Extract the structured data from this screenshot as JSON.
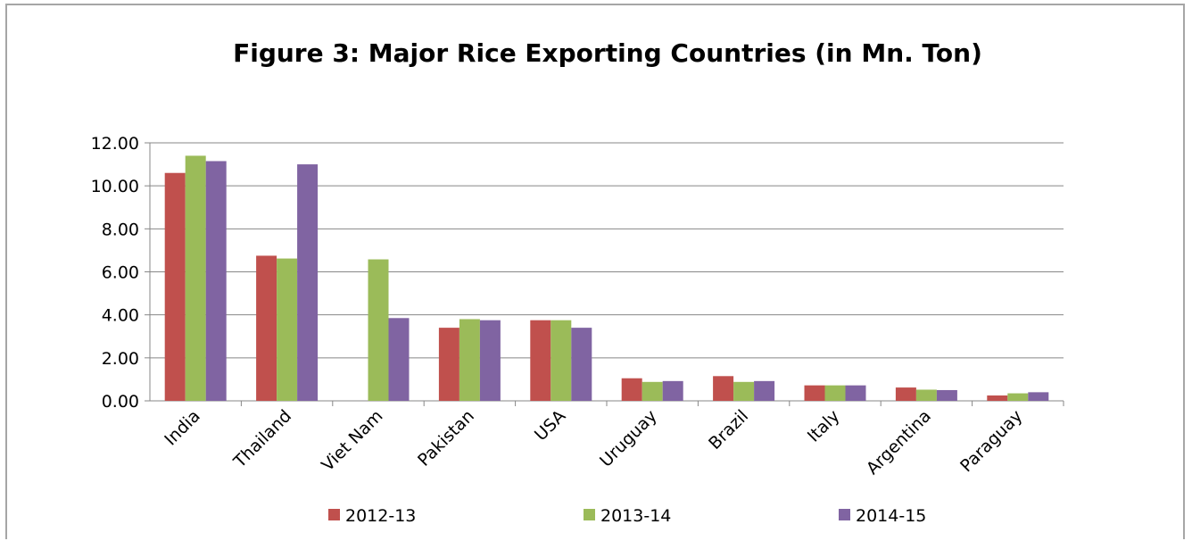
{
  "chart_data": {
    "type": "bar",
    "title": "Figure 3: Major Rice Exporting Countries (in Mn. Ton)",
    "xlabel": "",
    "ylabel": "",
    "categories": [
      "India",
      "Thailand",
      "Viet Nam",
      "Pakistan",
      "USA",
      "Uruguay",
      "Brazil",
      "Italy",
      "Argentina",
      "Paraguay"
    ],
    "series": [
      {
        "name": "2012-13",
        "color": "#c0504d",
        "values": [
          10.6,
          6.75,
          0.0,
          3.4,
          3.75,
          1.05,
          1.15,
          0.72,
          0.62,
          0.25
        ]
      },
      {
        "name": "2013-14",
        "color": "#9bbb59",
        "values": [
          11.4,
          6.62,
          6.58,
          3.8,
          3.75,
          0.88,
          0.88,
          0.72,
          0.52,
          0.35
        ]
      },
      {
        "name": "2014-15",
        "color": "#8064a2",
        "values": [
          11.15,
          11.0,
          3.85,
          3.75,
          3.4,
          0.92,
          0.92,
          0.72,
          0.5,
          0.4
        ]
      }
    ],
    "ylim": [
      0,
      12
    ],
    "yticks": [
      "0.00",
      "2.00",
      "4.00",
      "6.00",
      "8.00",
      "10.00",
      "12.00"
    ],
    "grid": true,
    "legend_position": "bottom"
  }
}
